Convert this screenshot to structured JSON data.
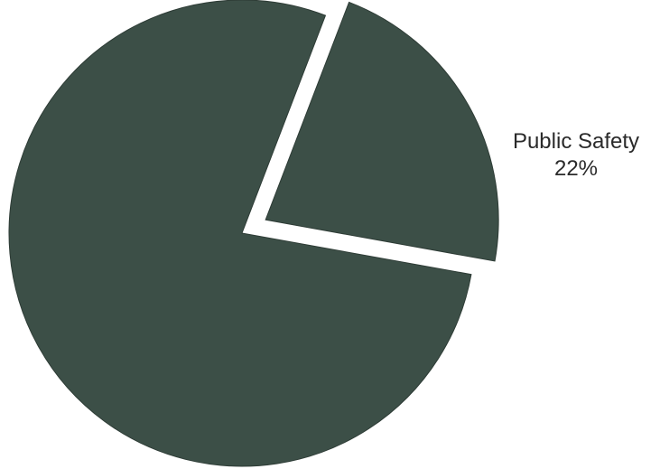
{
  "chart_data": {
    "type": "pie",
    "slices": [
      {
        "label": "Public Safety",
        "value_label": "22%",
        "value": 22,
        "exploded": true,
        "color": "#3c4f47"
      },
      {
        "label": "",
        "value_label": "",
        "value": 78,
        "exploded": false,
        "color": "#3c4f47"
      }
    ],
    "title": "",
    "legend": "none"
  }
}
